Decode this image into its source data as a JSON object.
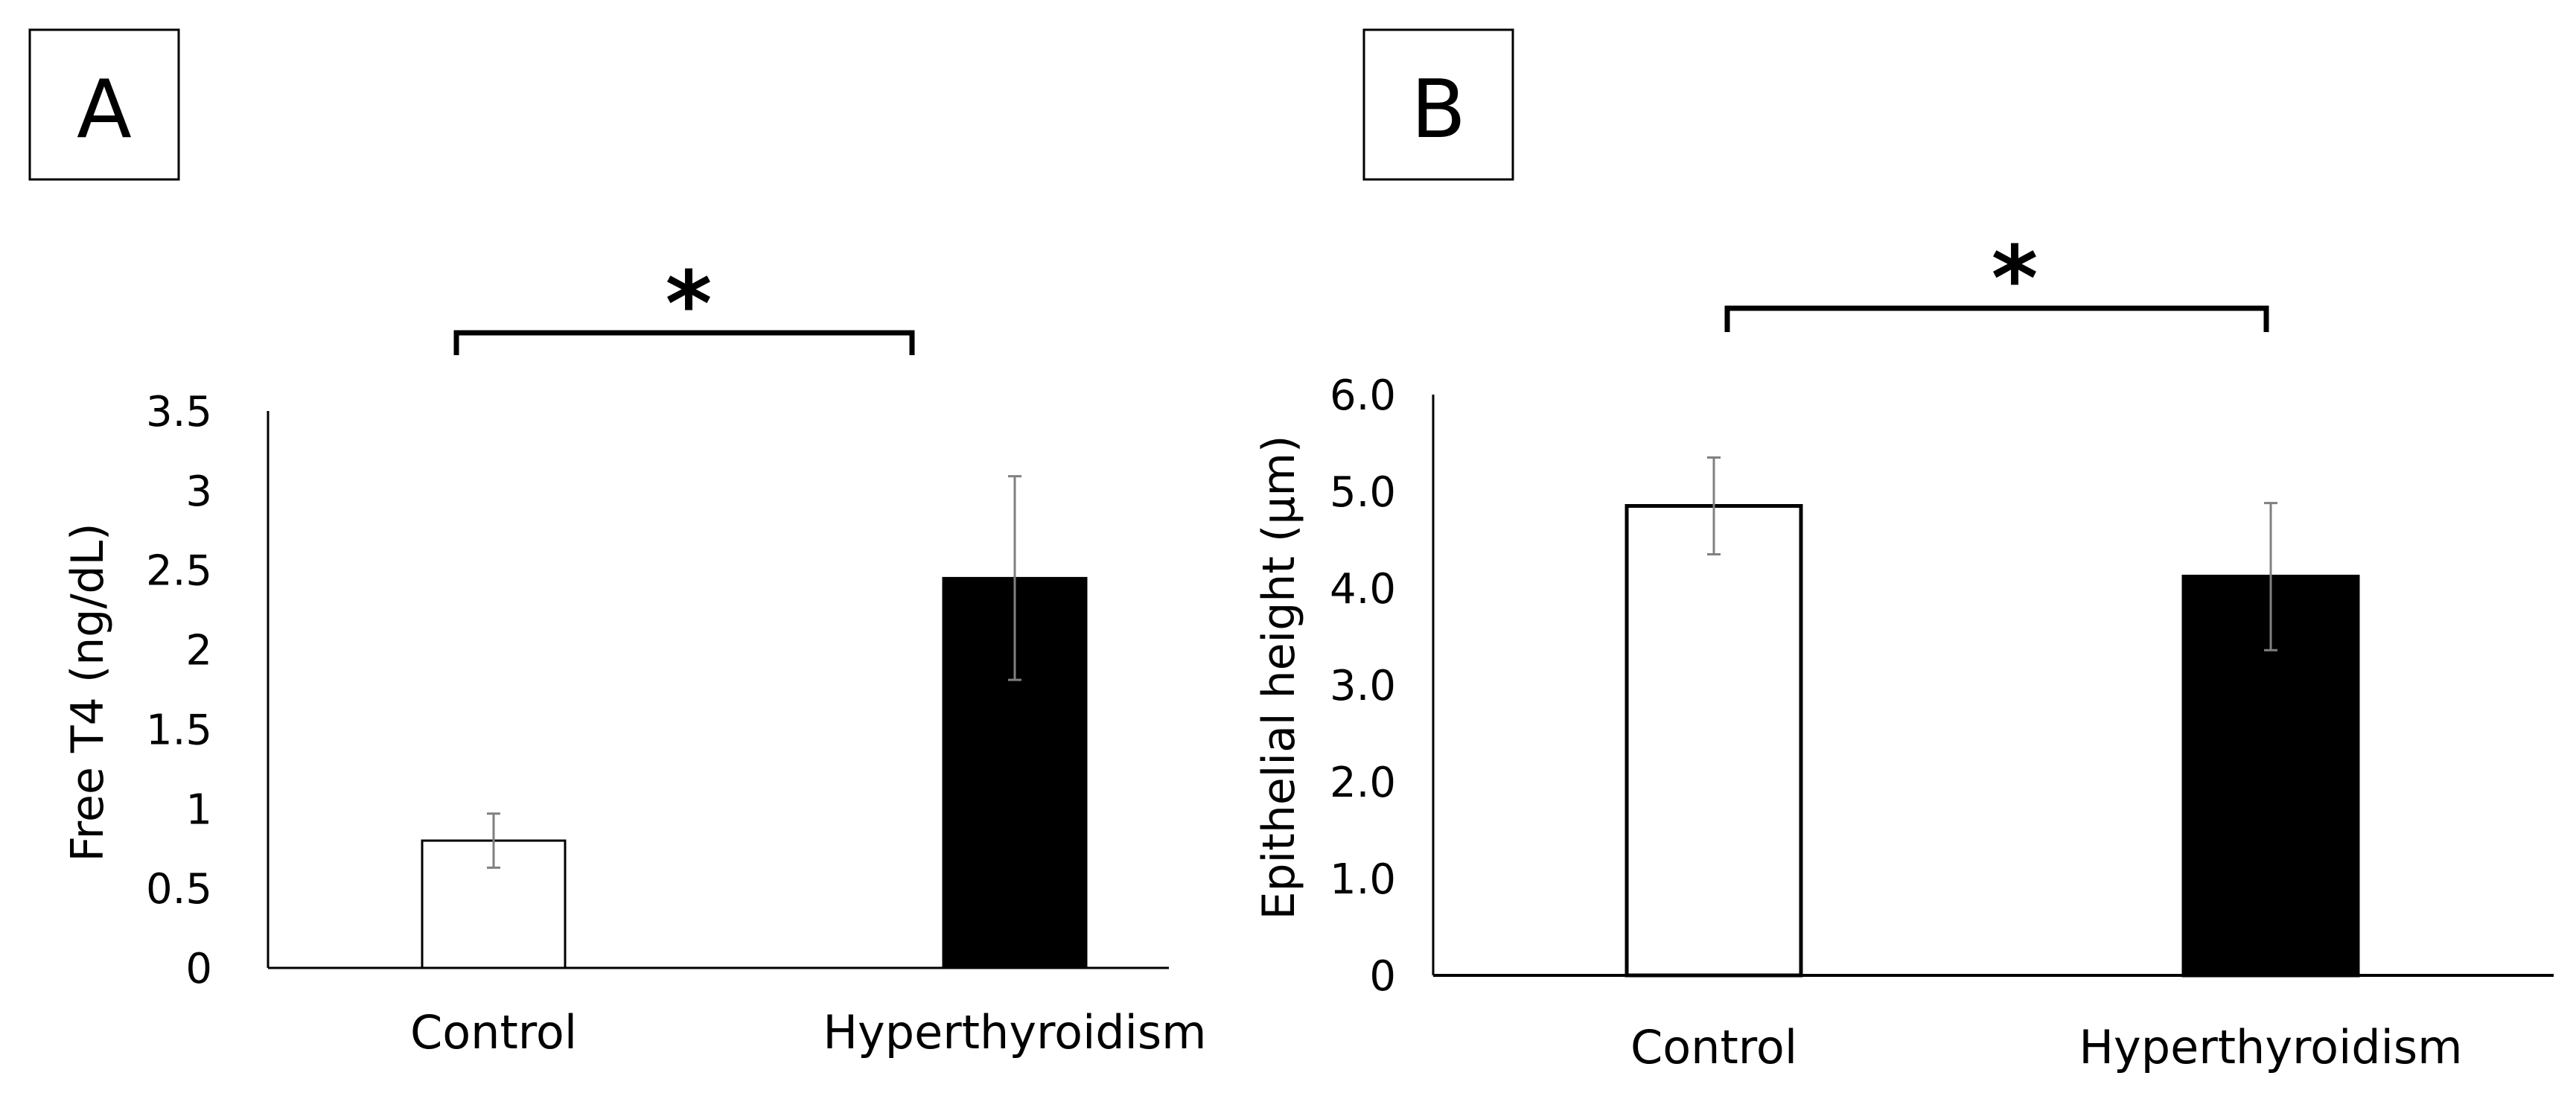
{
  "colors": {
    "control": "#ffffff",
    "hyperthyroidism": "#000000",
    "error_bar": "#808080",
    "axis": "#000000"
  },
  "chart_data": [
    {
      "type": "bar",
      "panel": "A",
      "title": "",
      "xlabel": "",
      "ylabel": "Free T4 (ng/dL)",
      "categories": [
        "Control",
        "Hyperthyroidism"
      ],
      "values": [
        0.8,
        2.45
      ],
      "errors": [
        0.17,
        0.64
      ],
      "ylim": [
        0,
        3.5
      ],
      "yticks": [
        0,
        0.5,
        1,
        1.5,
        2,
        2.5,
        3,
        3.5
      ],
      "ytick_labels": [
        "0",
        "0.5",
        "1",
        "1.5",
        "2",
        "2.5",
        "3",
        "3.5"
      ],
      "significance": {
        "label": "*",
        "between": [
          "Control",
          "Hyperthyroidism"
        ]
      },
      "grid": false,
      "legend": "none"
    },
    {
      "type": "bar",
      "panel": "B",
      "title": "",
      "xlabel": "",
      "ylabel": "Epithelial height (μm)",
      "categories": [
        "Control",
        "Hyperthyroidism"
      ],
      "values": [
        4.85,
        4.12
      ],
      "errors": [
        0.5,
        0.76
      ],
      "ylim": [
        0,
        6.0
      ],
      "yticks": [
        0,
        1,
        2,
        3,
        4,
        5,
        6
      ],
      "ytick_labels": [
        "0",
        "1.0",
        "2.0",
        "3.0",
        "4.0",
        "5.0",
        "6.0"
      ],
      "significance": {
        "label": "*",
        "between": [
          "Control",
          "Hyperthyroidism"
        ]
      },
      "grid": false,
      "legend": "none"
    }
  ]
}
